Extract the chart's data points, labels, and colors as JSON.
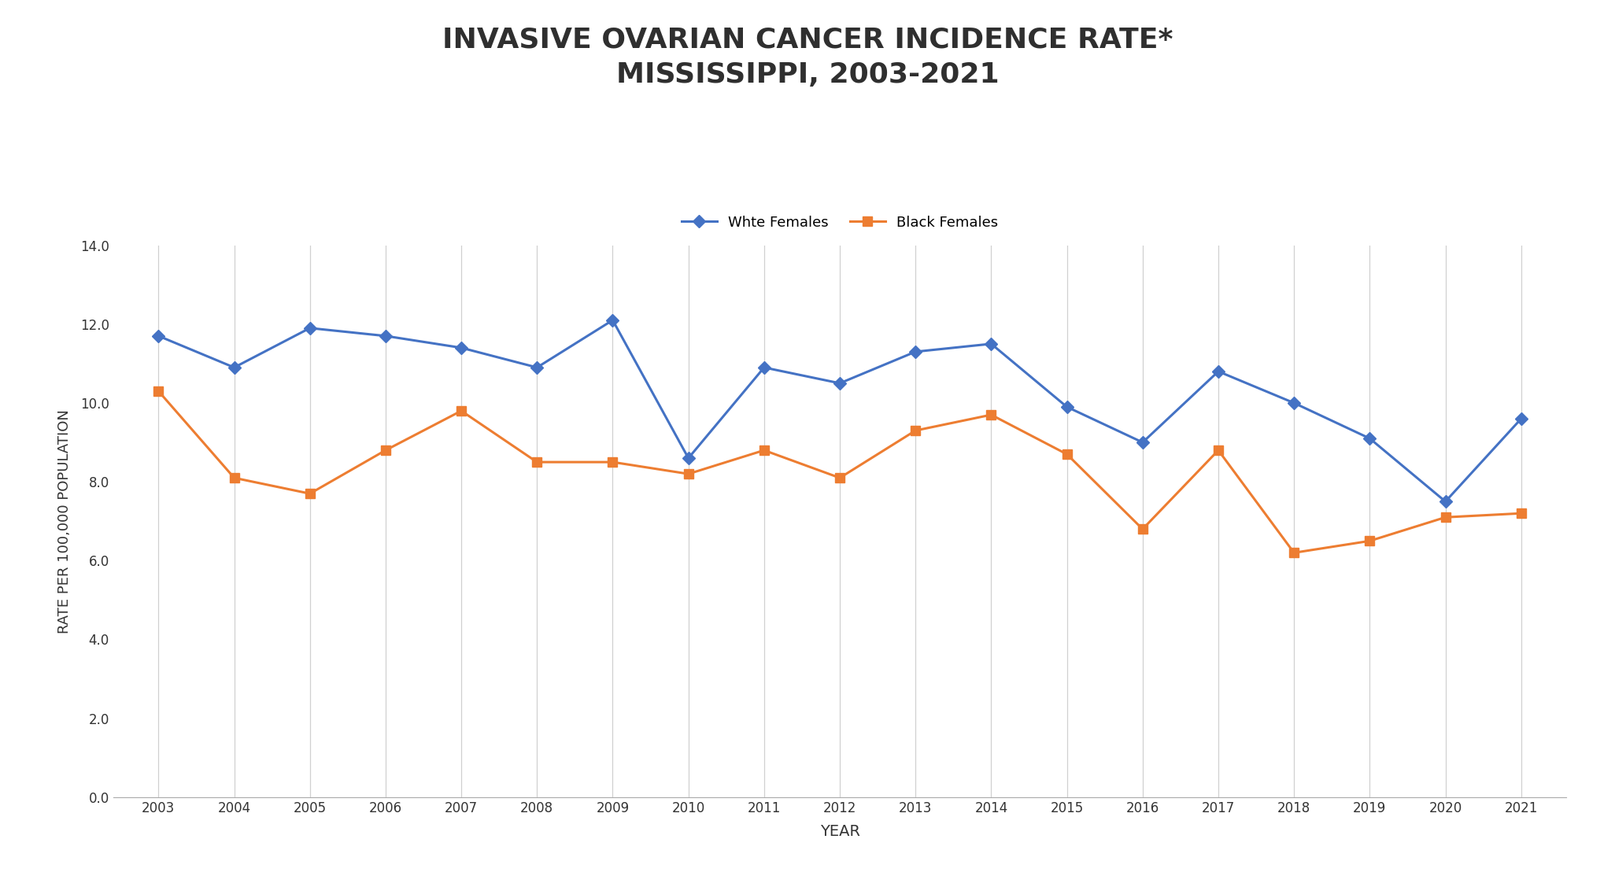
{
  "title_line1": "INVASIVE OVARIAN CANCER INCIDENCE RATE*",
  "title_line2": "MISSISSIPPI, 2003-2021",
  "xlabel": "YEAR",
  "ylabel": "RATE PER 100,000 POPULATION",
  "years": [
    2003,
    2004,
    2005,
    2006,
    2007,
    2008,
    2009,
    2010,
    2011,
    2012,
    2013,
    2014,
    2015,
    2016,
    2017,
    2018,
    2019,
    2020,
    2021
  ],
  "white_females": [
    11.7,
    10.9,
    11.9,
    11.7,
    11.4,
    10.9,
    12.1,
    8.6,
    10.9,
    10.5,
    11.3,
    11.5,
    9.9,
    9.0,
    10.8,
    10.0,
    9.1,
    7.5,
    9.6
  ],
  "black_females": [
    10.3,
    8.1,
    7.7,
    8.8,
    9.8,
    8.5,
    8.5,
    8.2,
    8.8,
    8.1,
    9.3,
    9.7,
    8.7,
    6.8,
    8.8,
    6.2,
    6.5,
    7.1,
    7.2
  ],
  "white_color": "#4472C4",
  "black_color": "#ED7D31",
  "white_label": "Whte Females",
  "black_label": "Black Females",
  "ylim": [
    0,
    14.0
  ],
  "yticks": [
    0.0,
    2.0,
    4.0,
    6.0,
    8.0,
    10.0,
    12.0,
    14.0
  ],
  "background_color": "#FFFFFF",
  "grid_color": "#D0D0D0",
  "title_fontsize": 26,
  "axis_label_fontsize": 13,
  "tick_fontsize": 12,
  "legend_fontsize": 13,
  "line_width": 2.2,
  "marker_size": 8
}
